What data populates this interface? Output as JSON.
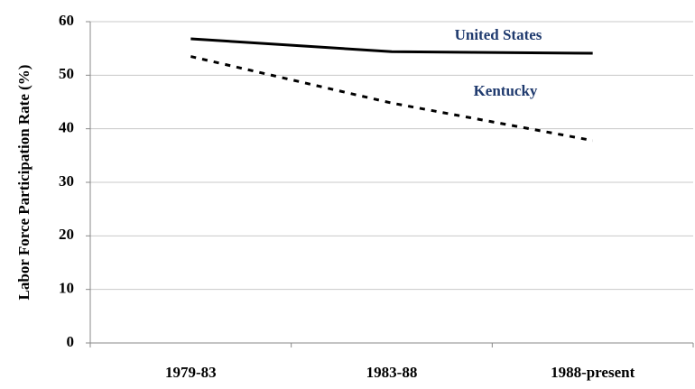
{
  "chart_data": {
    "type": "line",
    "y_label": "Labor Force Participation Rate (%)",
    "categories": [
      "1979-83",
      "1983-88",
      "1988-present"
    ],
    "series": [
      {
        "name": "United States",
        "color": "#000000",
        "dash": "solid",
        "label_color": "#1f3a6e",
        "values": [
          56.8,
          54.4,
          54.1
        ]
      },
      {
        "name": "Kentucky",
        "color": "#000000",
        "dash": "dotted",
        "label_color": "#1f3a6e",
        "values": [
          53.5,
          44.8,
          37.8
        ]
      }
    ],
    "ylim": [
      0,
      60
    ],
    "yticks": [
      0,
      10,
      20,
      30,
      40,
      50,
      60
    ],
    "grid": true
  }
}
